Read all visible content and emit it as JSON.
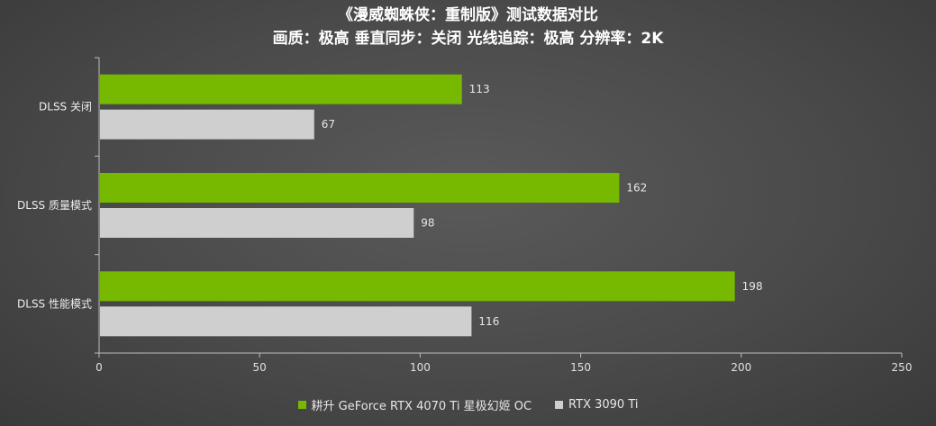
{
  "chart_data": {
    "type": "bar",
    "orientation": "horizontal",
    "title": "《漫威蜘蛛侠：重制版》测试数据对比",
    "subtitle": "画质：极高 垂直同步：关闭 光线追踪：极高 分辨率：2K",
    "categories": [
      "DLSS 关闭",
      "DLSS 质量模式",
      "DLSS 性能模式"
    ],
    "series": [
      {
        "name": "耕升 GeForce RTX 4070 Ti 星极幻姬 OC",
        "color": "#76b900",
        "values": [
          113,
          162,
          198
        ]
      },
      {
        "name": "RTX 3090 Ti",
        "color": "#cfcfcf",
        "values": [
          67,
          98,
          116
        ]
      }
    ],
    "xlim": [
      0,
      250
    ],
    "xticks": [
      0,
      50,
      100,
      150,
      200,
      250
    ],
    "grid": false,
    "legend_position": "bottom"
  }
}
